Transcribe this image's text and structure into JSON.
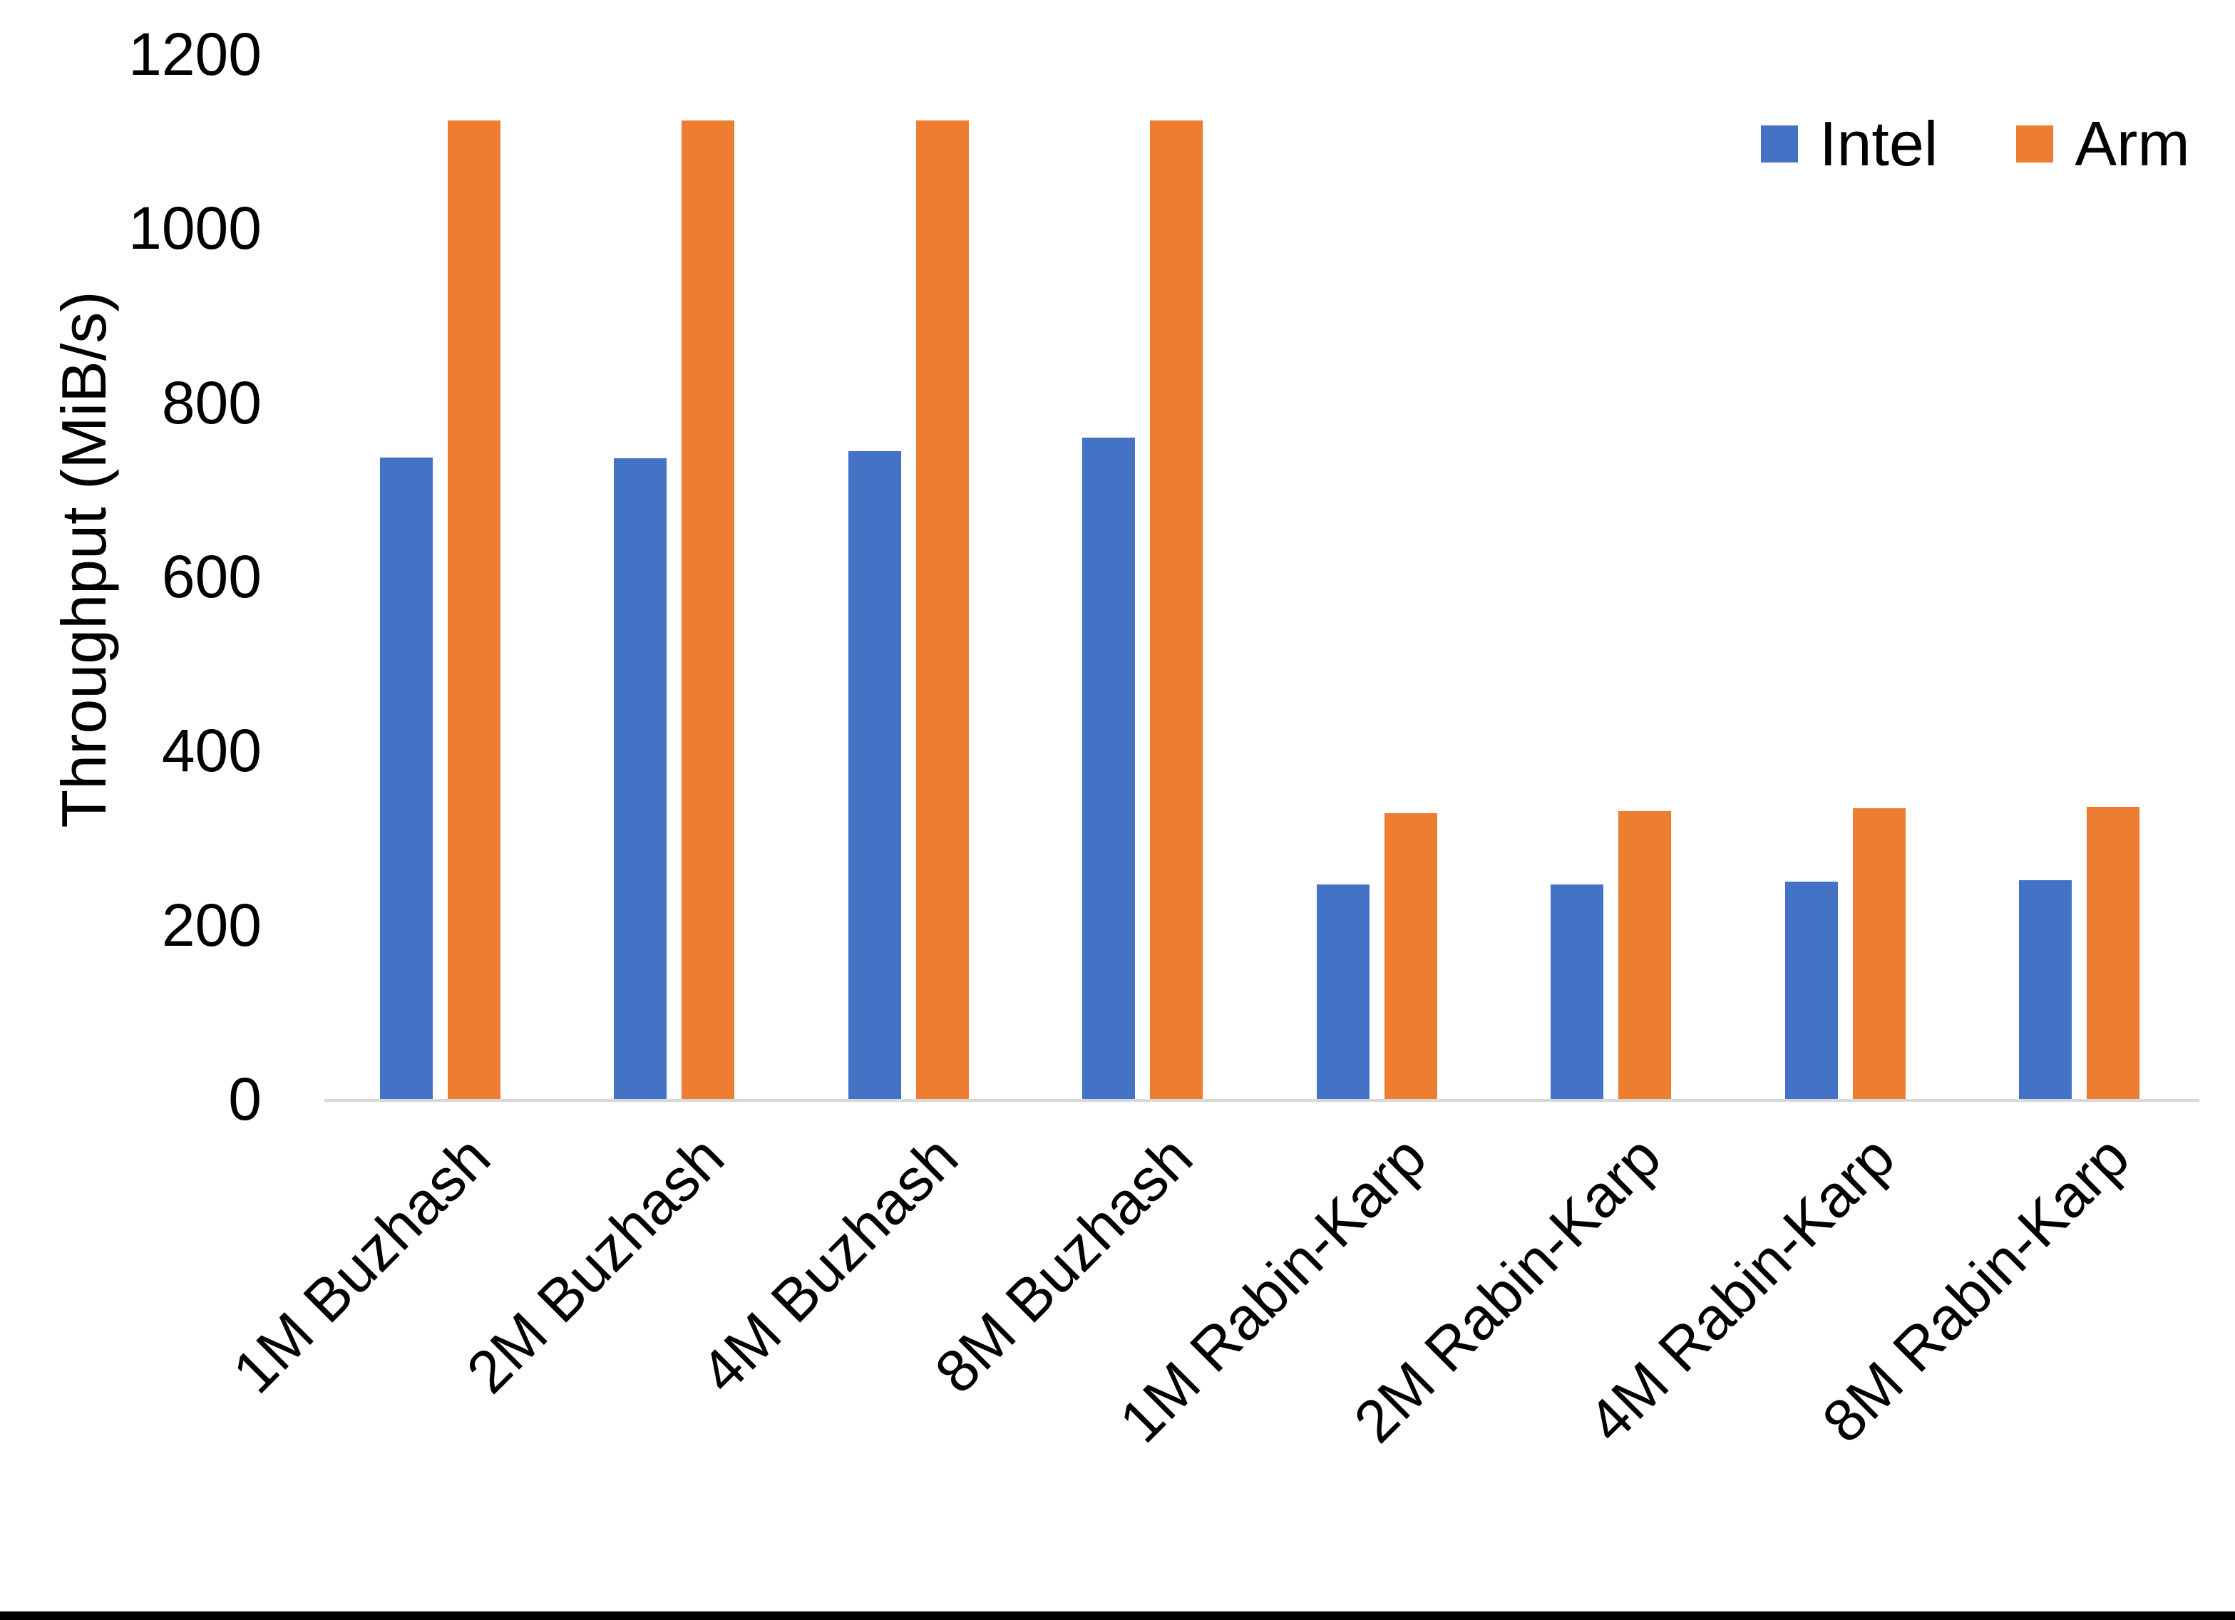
{
  "chart_data": {
    "type": "bar",
    "title": "",
    "xlabel": "",
    "ylabel": "Throughput (MiB/s)",
    "categories": [
      "1M Buzhash",
      "2M Buzhash",
      "4M Buzhash",
      "8M Buzhash",
      "1M Rabin-Karp",
      "2M Rabin-Karp",
      "4M Rabin-Karp",
      "8M Rabin-Karp"
    ],
    "series": [
      {
        "name": "Intel",
        "color": "#4472C4",
        "values": [
          737,
          736,
          744,
          760,
          246,
          246,
          250,
          251
        ]
      },
      {
        "name": "Arm",
        "color": "#ED7D31",
        "values": [
          1124,
          1124,
          1124,
          1124,
          328,
          331,
          334,
          336
        ]
      }
    ],
    "y_ticks": [
      0,
      200,
      400,
      600,
      800,
      1000,
      1200
    ],
    "ylim": [
      0,
      1200
    ],
    "grid": false,
    "legend_position": "top-right",
    "axis_line_color": "#D9D9D9",
    "text_color": "#000000",
    "background_color": "#FFFFFF"
  }
}
